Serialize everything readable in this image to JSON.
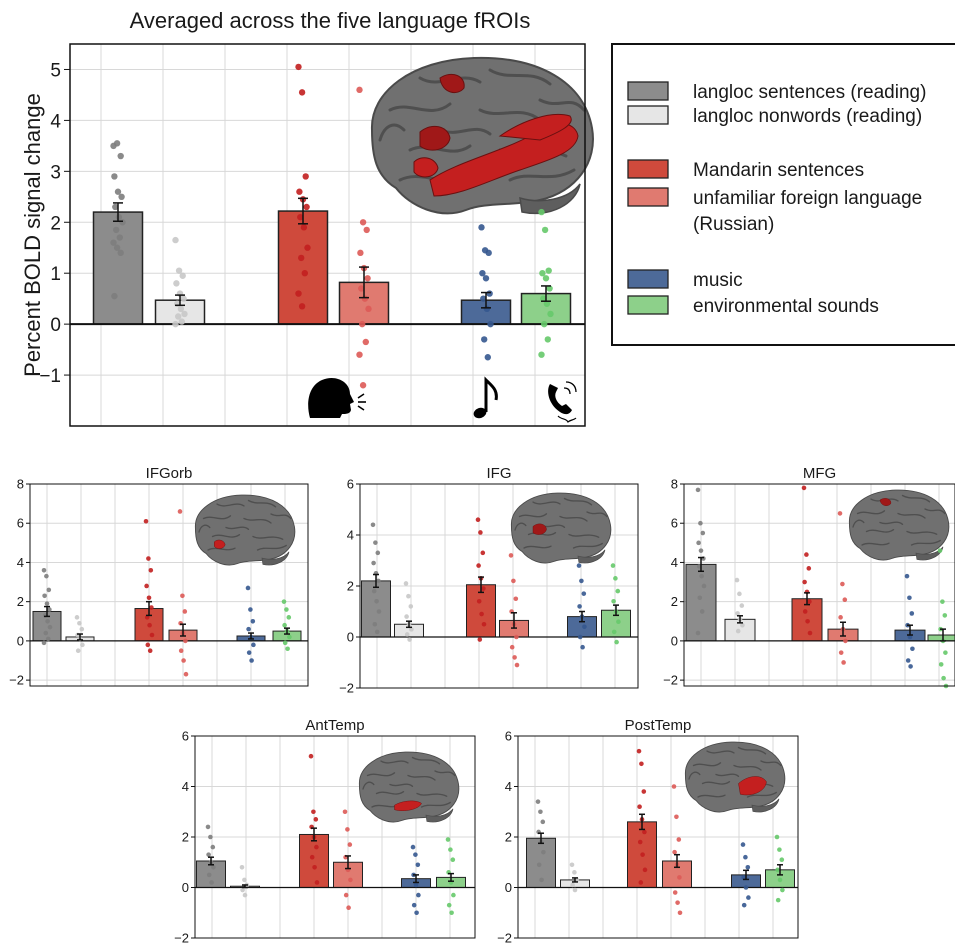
{
  "colors": {
    "langloc sentences (reading)": "#8c8c8c",
    "langloc nonwords (reading)": "#e6e6e6",
    "Mandarin sentences": "#cf4a3c",
    "unfamiliar foreign language (Russian)": "#e07a70",
    "music": "#4d6a99",
    "environmental sounds": "#8dd08a",
    "dots": [
      "#7d7d7d",
      "#c8c8c8",
      "#c21f1f",
      "#dd5a57",
      "#35588f",
      "#66c96a"
    ],
    "brain": "#6e6e6e",
    "froi": "#a01818"
  },
  "legend": {
    "items": [
      {
        "label": "langloc sentences (reading)",
        "color": "#8c8c8c"
      },
      {
        "label": "langloc nonwords (reading)",
        "color": "#e6e6e6"
      },
      {
        "label": "Mandarin sentences",
        "color": "#cf4a3c"
      },
      {
        "label": "unfamiliar foreign language",
        "label2": "(Russian)",
        "color": "#e07a70"
      },
      {
        "label": "music",
        "color": "#4d6a99"
      },
      {
        "label": "environmental sounds",
        "color": "#8dd08a"
      }
    ]
  },
  "icons": [
    "speaking-head-icon",
    "music-note-icon",
    "phone-ringing-icon"
  ],
  "chart_data": [
    {
      "type": "bar",
      "title": "Averaged across the five language fROIs",
      "ylabel": "Percent BOLD signal change",
      "xlabel": "",
      "ylim": [
        -2,
        5.5
      ],
      "yticks": [
        -1,
        0,
        1,
        2,
        3,
        4,
        5
      ],
      "grid": true,
      "brain_region": "all",
      "categories": [
        "langloc sentences (reading)",
        "langloc nonwords (reading)",
        "Mandarin sentences",
        "unfamiliar foreign language (Russian)",
        "music",
        "environmental sounds"
      ],
      "values": [
        2.2,
        0.47,
        2.22,
        0.82,
        0.47,
        0.6
      ],
      "errors": [
        0.18,
        0.1,
        0.25,
        0.3,
        0.15,
        0.15
      ],
      "points": [
        [
          3.5,
          3.55,
          3.3,
          2.9,
          2.6,
          2.5,
          2.3,
          2.1,
          2.0,
          1.85,
          1.7,
          1.6,
          1.5,
          1.4,
          0.55
        ],
        [
          1.65,
          1.05,
          0.95,
          0.8,
          0.6,
          0.5,
          0.4,
          0.3,
          0.2,
          0.15,
          0.05,
          0.0
        ],
        [
          5.05,
          4.55,
          2.9,
          2.6,
          2.45,
          2.3,
          2.1,
          1.9,
          1.5,
          1.3,
          1.0,
          0.6,
          0.35
        ],
        [
          4.6,
          2.0,
          1.85,
          1.4,
          1.1,
          0.9,
          0.7,
          0.5,
          0.3,
          0.0,
          -0.35,
          -0.6,
          -1.2
        ],
        [
          1.9,
          1.45,
          1.4,
          1.0,
          0.9,
          0.6,
          0.5,
          0.3,
          0.0,
          -0.3,
          -0.65
        ],
        [
          2.2,
          1.85,
          1.05,
          1.0,
          0.9,
          0.7,
          0.5,
          0.4,
          0.2,
          0.0,
          -0.3,
          -0.6
        ]
      ]
    },
    {
      "type": "bar",
      "title": "IFGorb",
      "ylim": [
        -2.3,
        8
      ],
      "yticks": [
        -2,
        0,
        2,
        4,
        6,
        8
      ],
      "grid": true,
      "brain_region": "IFGorb",
      "categories": [
        "langloc sentences (reading)",
        "langloc nonwords (reading)",
        "Mandarin sentences",
        "unfamiliar foreign language (Russian)",
        "music",
        "environmental sounds"
      ],
      "values": [
        1.5,
        0.2,
        1.65,
        0.55,
        0.25,
        0.5
      ],
      "errors": [
        0.25,
        0.15,
        0.35,
        0.3,
        0.15,
        0.15
      ],
      "points": [
        [
          3.6,
          3.3,
          2.6,
          2.3,
          1.9,
          1.6,
          1.3,
          1.0,
          0.7,
          0.4,
          0.1,
          -0.1
        ],
        [
          1.2,
          0.9,
          0.6,
          0.3,
          0.1,
          -0.2,
          -0.5
        ],
        [
          6.1,
          4.2,
          3.6,
          2.8,
          2.2,
          1.7,
          1.2,
          0.8,
          0.3,
          -0.2,
          -0.5
        ],
        [
          6.6,
          2.3,
          1.5,
          0.9,
          0.4,
          0.0,
          -0.5,
          -1.0,
          -1.7
        ],
        [
          2.7,
          1.6,
          1.0,
          0.6,
          0.2,
          -0.2,
          -0.6,
          -1.0
        ],
        [
          2.0,
          1.6,
          1.2,
          0.8,
          0.5,
          0.2,
          -0.1,
          -0.4
        ]
      ]
    },
    {
      "type": "bar",
      "title": "IFG",
      "ylim": [
        -2,
        6
      ],
      "yticks": [
        -2,
        0,
        2,
        4,
        6
      ],
      "grid": true,
      "brain_region": "IFG",
      "categories": [
        "langloc sentences (reading)",
        "langloc nonwords (reading)",
        "Mandarin sentences",
        "unfamiliar foreign language (Russian)",
        "music",
        "environmental sounds"
      ],
      "values": [
        2.2,
        0.5,
        2.05,
        0.65,
        0.8,
        1.05
      ],
      "errors": [
        0.25,
        0.12,
        0.3,
        0.3,
        0.2,
        0.2
      ],
      "points": [
        [
          4.4,
          3.7,
          3.3,
          2.9,
          2.5,
          2.2,
          1.8,
          1.4,
          1.0,
          0.5,
          0.2
        ],
        [
          2.1,
          1.6,
          1.2,
          0.8,
          0.5,
          0.3,
          0.1,
          -0.1
        ],
        [
          4.6,
          4.1,
          3.3,
          2.8,
          2.3,
          1.9,
          1.4,
          0.9,
          0.5,
          -0.1
        ],
        [
          3.2,
          2.2,
          1.5,
          1.0,
          0.5,
          0.0,
          -0.4,
          -0.8,
          -1.1
        ],
        [
          2.8,
          2.2,
          1.7,
          1.2,
          0.8,
          0.4,
          0.0,
          -0.4
        ],
        [
          2.8,
          2.3,
          1.8,
          1.4,
          1.0,
          0.6,
          0.2,
          -0.2
        ]
      ]
    },
    {
      "type": "bar",
      "title": "MFG",
      "ylim": [
        -2.3,
        8
      ],
      "yticks": [
        -2,
        0,
        2,
        4,
        6,
        8
      ],
      "grid": true,
      "brain_region": "MFG",
      "categories": [
        "langloc sentences (reading)",
        "langloc nonwords (reading)",
        "Mandarin sentences",
        "unfamiliar foreign language (Russian)",
        "music",
        "environmental sounds"
      ],
      "values": [
        3.9,
        1.1,
        2.15,
        0.6,
        0.55,
        0.3
      ],
      "errors": [
        0.35,
        0.18,
        0.3,
        0.35,
        0.25,
        0.3
      ],
      "points": [
        [
          7.7,
          6.0,
          5.5,
          5.0,
          4.6,
          4.2,
          3.8,
          3.3,
          2.8,
          2.2,
          1.5,
          0.4
        ],
        [
          3.1,
          2.4,
          1.8,
          1.4,
          1.1,
          0.8,
          0.5
        ],
        [
          7.8,
          4.4,
          3.7,
          3.0,
          2.5,
          2.0,
          1.5,
          1.0,
          0.4
        ],
        [
          6.5,
          2.9,
          2.1,
          1.2,
          0.6,
          0.0,
          -0.6,
          -1.1
        ],
        [
          3.3,
          2.2,
          1.4,
          0.8,
          0.2,
          -0.4,
          -1.0,
          -1.3
        ],
        [
          4.6,
          2.0,
          1.3,
          0.6,
          0.0,
          -0.6,
          -1.2,
          -1.9,
          -2.3
        ]
      ]
    },
    {
      "type": "bar",
      "title": "AntTemp",
      "ylim": [
        -2,
        6
      ],
      "yticks": [
        -2,
        0,
        2,
        4,
        6
      ],
      "grid": true,
      "brain_region": "AntTemp",
      "categories": [
        "langloc sentences (reading)",
        "langloc nonwords (reading)",
        "Mandarin sentences",
        "unfamiliar foreign language (Russian)",
        "music",
        "environmental sounds"
      ],
      "values": [
        1.05,
        0.05,
        2.1,
        1.0,
        0.35,
        0.4
      ],
      "errors": [
        0.15,
        0.05,
        0.25,
        0.25,
        0.15,
        0.15
      ],
      "points": [
        [
          2.4,
          2.0,
          1.6,
          1.3,
          1.0,
          0.8,
          0.5,
          0.2
        ],
        [
          0.8,
          0.3,
          0.1,
          -0.1,
          -0.3
        ],
        [
          5.2,
          3.0,
          2.7,
          2.4,
          2.0,
          1.6,
          1.2,
          0.8,
          0.2
        ],
        [
          3.0,
          2.3,
          1.7,
          1.2,
          0.7,
          0.3,
          -0.3,
          -0.8
        ],
        [
          1.6,
          1.3,
          0.9,
          0.5,
          0.1,
          -0.3,
          -0.7,
          -1.0
        ],
        [
          1.9,
          1.5,
          1.1,
          0.6,
          0.2,
          -0.3,
          -0.7,
          -1.0
        ]
      ]
    },
    {
      "type": "bar",
      "title": "PostTemp",
      "ylim": [
        -2,
        6
      ],
      "yticks": [
        -2,
        0,
        2,
        4,
        6
      ],
      "grid": true,
      "brain_region": "PostTemp",
      "categories": [
        "langloc sentences (reading)",
        "langloc nonwords (reading)",
        "Mandarin sentences",
        "unfamiliar foreign language (Russian)",
        "music",
        "environmental sounds"
      ],
      "values": [
        1.95,
        0.3,
        2.6,
        1.05,
        0.5,
        0.7
      ],
      "errors": [
        0.2,
        0.08,
        0.3,
        0.25,
        0.18,
        0.2
      ],
      "points": [
        [
          3.4,
          3.0,
          2.6,
          2.2,
          1.8,
          1.4,
          0.9,
          0.3
        ],
        [
          0.9,
          0.6,
          0.3,
          0.1,
          -0.1
        ],
        [
          5.4,
          4.9,
          3.8,
          3.2,
          2.7,
          2.2,
          1.8,
          1.3,
          0.7,
          0.2
        ],
        [
          4.0,
          2.8,
          1.9,
          1.4,
          0.9,
          0.4,
          -0.2,
          -0.6,
          -1.0
        ],
        [
          1.7,
          1.2,
          0.8,
          0.4,
          0.0,
          -0.4,
          -0.7
        ],
        [
          2.0,
          1.5,
          1.1,
          0.7,
          0.3,
          -0.1,
          -0.5
        ]
      ]
    }
  ]
}
